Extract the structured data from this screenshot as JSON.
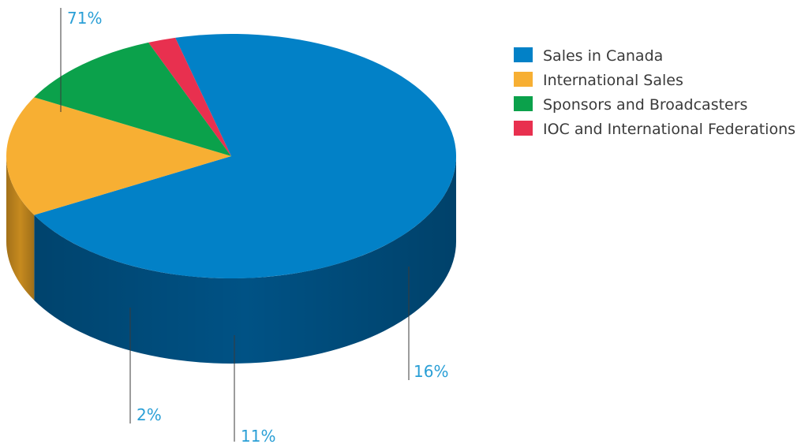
{
  "chart_data": {
    "type": "pie",
    "style": "3d",
    "categories": [
      "Sales in Canada",
      "International Sales",
      "Sponsors and Broadcasters",
      "IOC and International Federations"
    ],
    "values": [
      71,
      16,
      11,
      2
    ],
    "value_labels": [
      "71%",
      "16%",
      "11%",
      "2%"
    ],
    "colors": [
      "#0281C7",
      "#F7AF33",
      "#0BA14B",
      "#E8304F"
    ],
    "side_colors": [
      "#005285",
      "#C68A1F",
      "#06813A",
      "#92192F"
    ],
    "legend_position": "top-right",
    "label_color": "#2A9FD6"
  }
}
